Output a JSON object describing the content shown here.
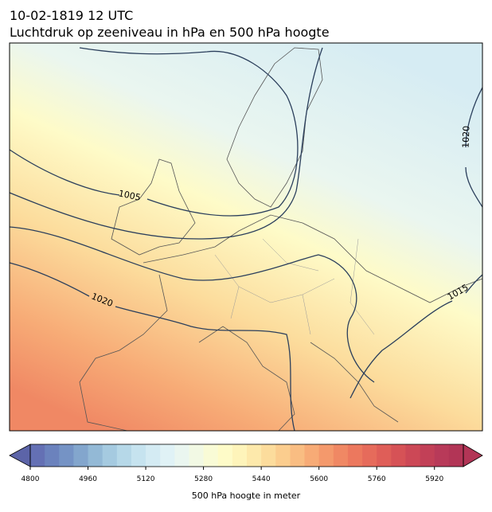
{
  "header": {
    "title": "10-02-1819 12 UTC",
    "subtitle": "Luchtdruk op zeeniveau in hPa en 500 hPa hoogte"
  },
  "map": {
    "contour_labels": [
      "1005",
      "1020",
      "1020",
      "1015"
    ]
  },
  "colorbar": {
    "label": "500 hPa hoogte in meter",
    "lim": [
      4800,
      6000
    ],
    "ticks": [
      4800,
      4960,
      5120,
      5280,
      5440,
      5600,
      5760,
      5920
    ],
    "under_color": "#5c64a8",
    "over_color": "#b23556",
    "colors": [
      "#6470b4",
      "#6b82bd",
      "#7593c5",
      "#83a6cd",
      "#93b9d6",
      "#a5cae0",
      "#b6d8e8",
      "#c6e3ef",
      "#d4ebf3",
      "#e0f2f6",
      "#eaf6f0",
      "#f2f9e4",
      "#f9fbd6",
      "#fefbc8",
      "#fef4ba",
      "#fde9ab",
      "#fcdc9c",
      "#fbcd8e",
      "#f9bd82",
      "#f7ab76",
      "#f4996c",
      "#f08864",
      "#ec785e",
      "#e66b5b",
      "#df5e58",
      "#d65256",
      "#cc4856",
      "#c24057",
      "#b83a59",
      "#b23556"
    ]
  }
}
